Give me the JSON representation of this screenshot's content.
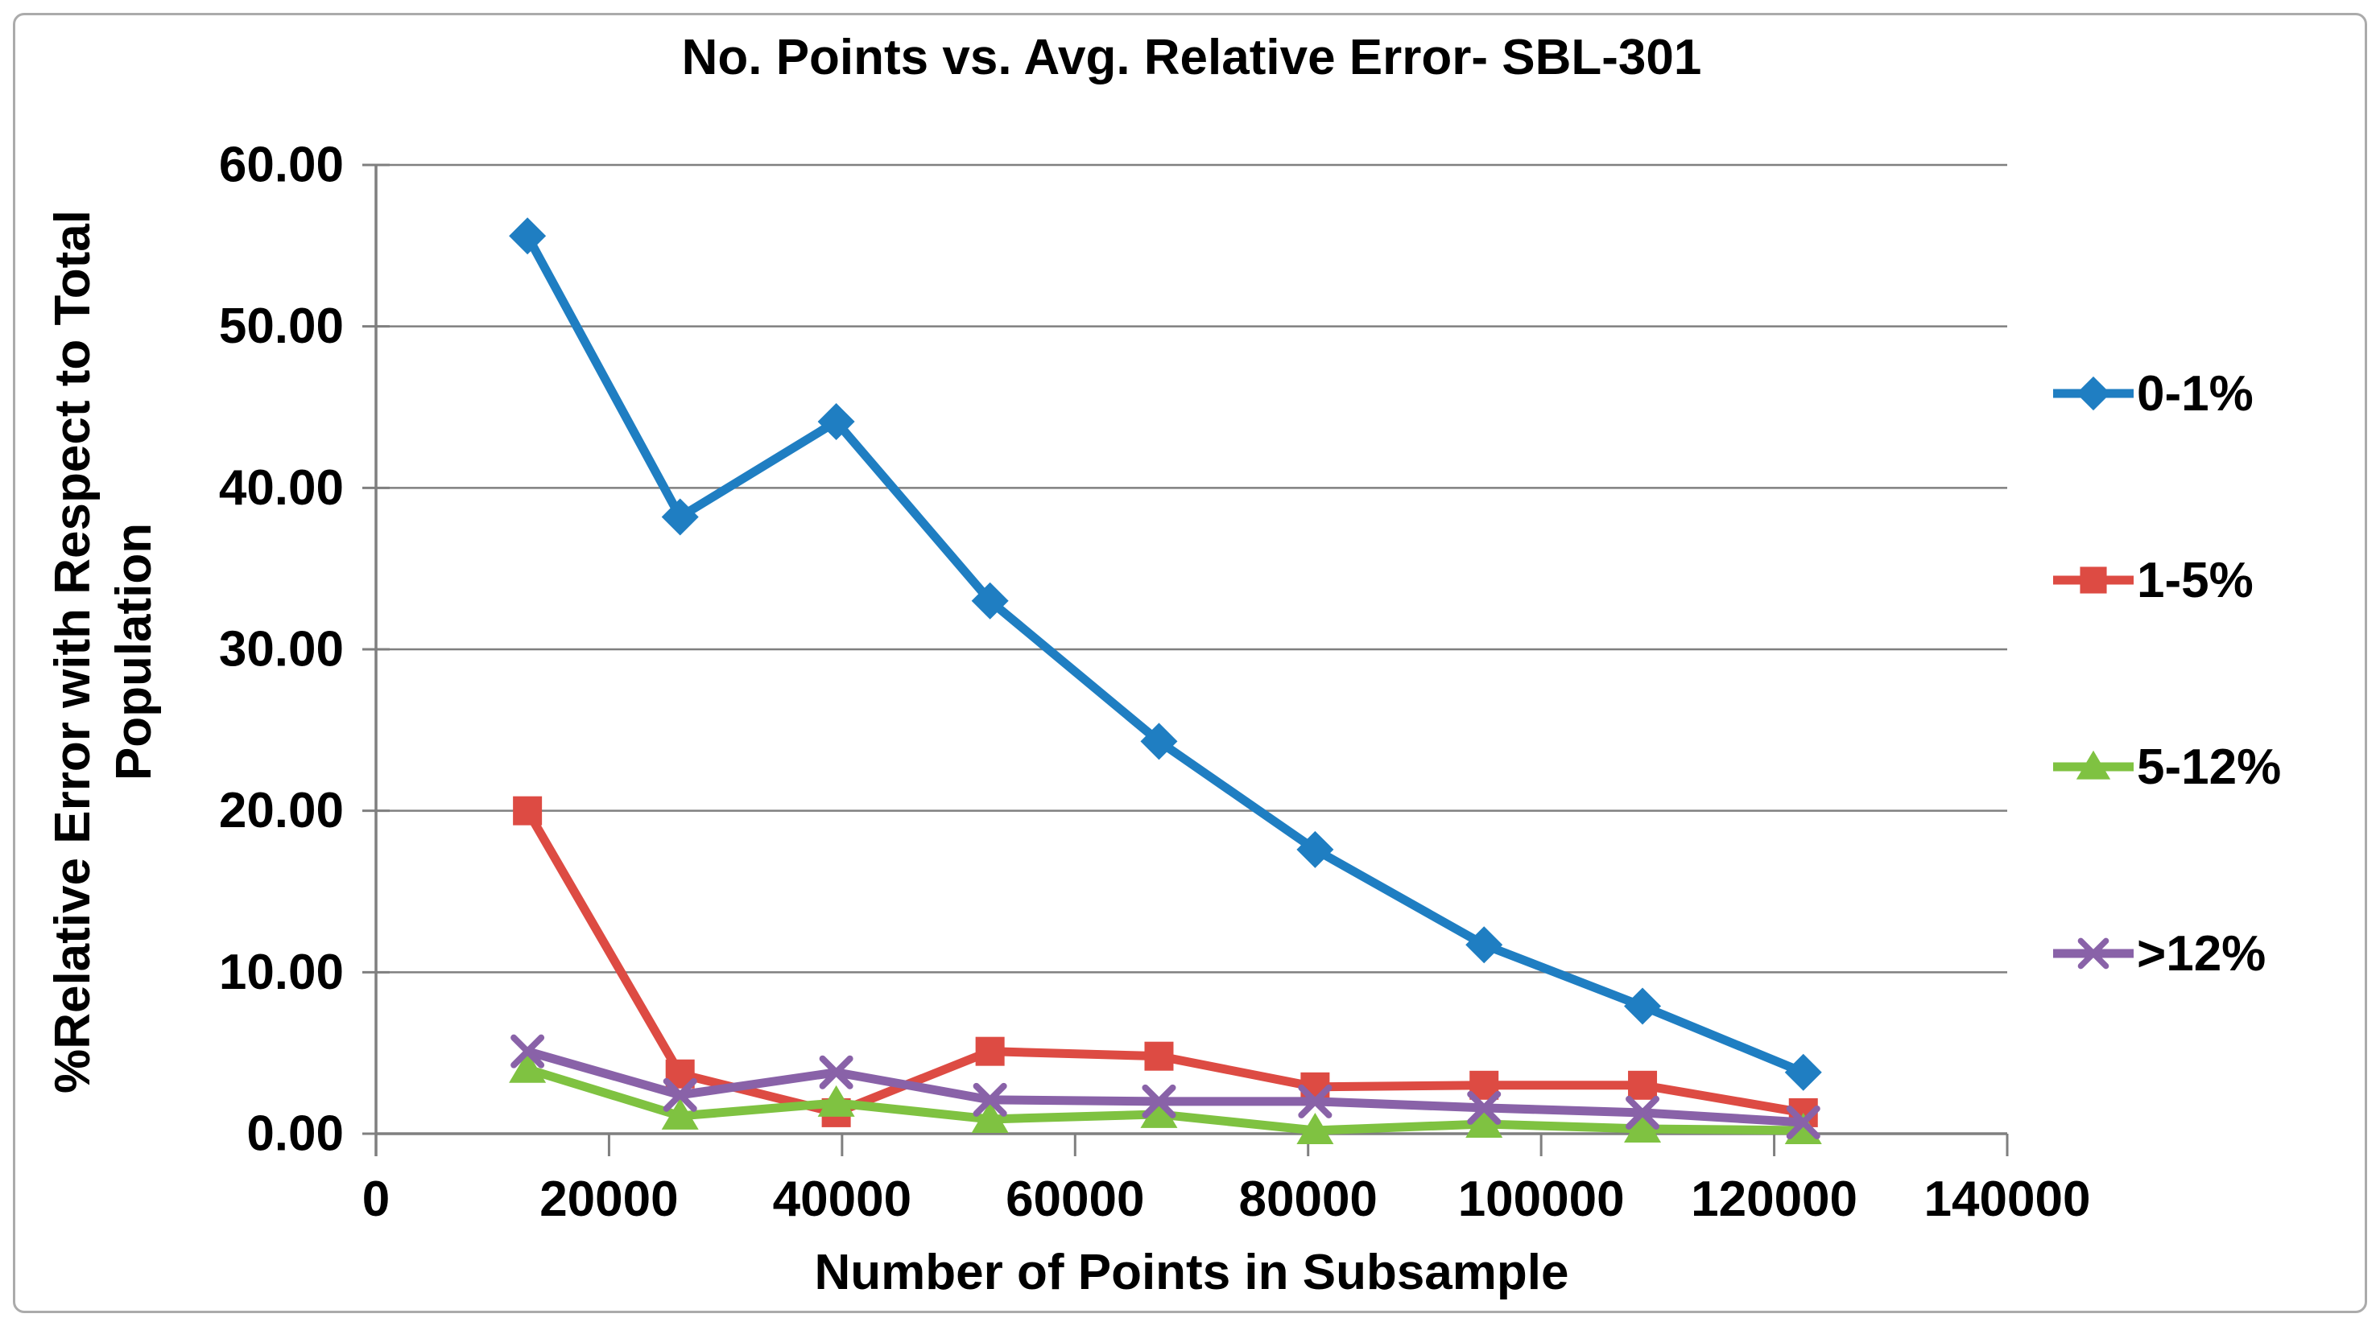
{
  "figure": {
    "title": "No. Points vs. Avg. Relative Error- SBL-301",
    "x_axis_title": "Number of Points in Subsample",
    "y_axis_title_line1": "%Relative Error with Respect to Total",
    "y_axis_title_line2": "Population"
  },
  "colors": {
    "grid": "#7f7f7f",
    "axis": "#7f7f7f",
    "text": "#000000",
    "frame_border": "#ababab",
    "background": "#ffffff"
  },
  "chart_data": {
    "type": "line",
    "title": "No. Points vs. Avg. Relative Error- SBL-301",
    "xlabel": "Number of Points in Subsample",
    "ylabel": "%Relative Error with Respect to Total Population",
    "xlim": [
      0,
      140000
    ],
    "ylim": [
      0,
      60
    ],
    "grid": "horizontal",
    "legend_position": "right",
    "x_ticks": [
      0,
      20000,
      40000,
      60000,
      80000,
      100000,
      120000,
      140000
    ],
    "x_tick_labels": [
      "0",
      "20000",
      "40000",
      "60000",
      "80000",
      "100000",
      "120000",
      "140000"
    ],
    "y_ticks": [
      0,
      10,
      20,
      30,
      40,
      50,
      60
    ],
    "y_tick_labels": [
      "0.00",
      "10.00",
      "20.00",
      "30.00",
      "40.00",
      "50.00",
      "60.00"
    ],
    "x": [
      13000,
      26100,
      39500,
      52700,
      67200,
      80600,
      95100,
      108700,
      122500
    ],
    "series": [
      {
        "name": "0-1%",
        "color": "#1f7ec2",
        "marker": "diamond",
        "values": [
          55.6,
          38.2,
          44.1,
          33.0,
          24.3,
          17.6,
          11.7,
          7.9,
          3.8
        ]
      },
      {
        "name": "1-5%",
        "color": "#dd4b43",
        "marker": "square",
        "values": [
          20.0,
          3.7,
          1.3,
          5.1,
          4.8,
          2.9,
          3.0,
          3.0,
          1.3
        ]
      },
      {
        "name": "5-12%",
        "color": "#7fc241",
        "marker": "triangle",
        "values": [
          4.0,
          1.1,
          1.9,
          0.9,
          1.2,
          0.2,
          0.6,
          0.3,
          0.2
        ]
      },
      {
        "name": ">12%",
        "color": "#8962a8",
        "marker": "x",
        "values": [
          5.1,
          2.4,
          3.8,
          2.1,
          2.0,
          2.0,
          1.6,
          1.3,
          0.7
        ]
      }
    ]
  }
}
